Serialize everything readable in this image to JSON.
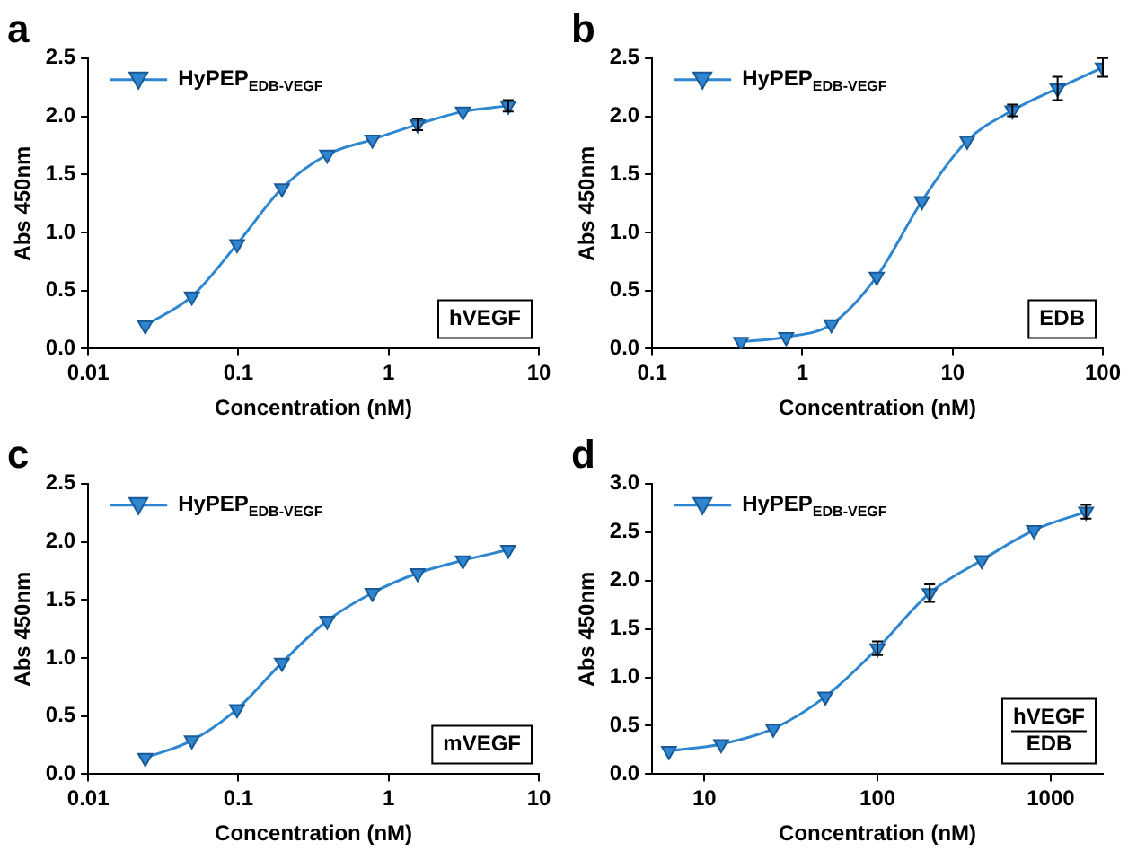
{
  "chart_data": [
    {
      "type": "line",
      "title": "a",
      "xlabel": "Concentration (nM)",
      "ylabel": "Abs 450nm",
      "log": "x",
      "xlim": [
        0.01,
        10
      ],
      "xticks": [
        0.01,
        0.1,
        1,
        10
      ],
      "ylim": [
        0,
        2.5
      ],
      "yticks": [
        {
          "value": 0,
          "label": "0.0"
        },
        {
          "value": 0.5,
          "label": "0.5"
        },
        {
          "value": 1,
          "label": "1.0"
        },
        {
          "value": 1.5,
          "label": "1.5"
        },
        {
          "value": 2,
          "label": "2.0"
        },
        {
          "value": 2.5,
          "label": "2.5"
        }
      ],
      "grid": false,
      "legend": "top left",
      "marker": "triangle",
      "line_style": "solid",
      "annotations": [
        "hVEGF"
      ],
      "x": [
        0.024,
        0.049,
        0.098,
        0.195,
        0.39,
        0.78,
        1.56,
        3.125,
        6.25
      ],
      "series": [
        {
          "name": "HyPEP$_{EDB-VEGF}$",
          "color": "#2f86d0",
          "values": [
            0.2,
            0.45,
            0.9,
            1.38,
            1.67,
            1.8,
            1.93,
            2.04,
            2.09
          ],
          "errors": [
            null,
            null,
            null,
            null,
            null,
            null,
            0.05,
            null,
            0.05
          ]
        }
      ]
    },
    {
      "type": "line",
      "title": "b",
      "xlabel": "Concentration (nM)",
      "ylabel": "Abs 450nm",
      "log": "x",
      "xlim": [
        0.1,
        100
      ],
      "xticks": [
        0.1,
        1,
        10,
        100
      ],
      "ylim": [
        0,
        2.5
      ],
      "yticks": [
        {
          "value": 0,
          "label": "0.0"
        },
        {
          "value": 0.5,
          "label": "0.5"
        },
        {
          "value": 1,
          "label": "1.0"
        },
        {
          "value": 1.5,
          "label": "1.5"
        },
        {
          "value": 2,
          "label": "2.0"
        },
        {
          "value": 2.5,
          "label": "2.5"
        }
      ],
      "grid": false,
      "legend": "top left",
      "marker": "triangle",
      "line_style": "solid",
      "annotations": [
        "EDB"
      ],
      "x": [
        0.39,
        0.78,
        1.56,
        3.125,
        6.25,
        12.5,
        25,
        50,
        100
      ],
      "series": [
        {
          "name": "HyPEP$_{EDB-VEGF}$",
          "color": "#2f86d0",
          "values": [
            0.06,
            0.1,
            0.21,
            0.62,
            1.27,
            1.79,
            2.05,
            2.24,
            2.42
          ],
          "errors": [
            null,
            null,
            null,
            null,
            null,
            null,
            0.05,
            0.1,
            0.08
          ]
        }
      ]
    },
    {
      "type": "line",
      "title": "c",
      "xlabel": "Concentration (nM)",
      "ylabel": "Abs 450nm",
      "log": "x",
      "xlim": [
        0.01,
        10
      ],
      "xticks": [
        0.01,
        0.1,
        1,
        10
      ],
      "ylim": [
        0,
        2.5
      ],
      "yticks": [
        {
          "value": 0,
          "label": "0.0"
        },
        {
          "value": 0.5,
          "label": "0.5"
        },
        {
          "value": 1,
          "label": "1.0"
        },
        {
          "value": 1.5,
          "label": "1.5"
        },
        {
          "value": 2,
          "label": "2.0"
        },
        {
          "value": 2.5,
          "label": "2.5"
        }
      ],
      "grid": false,
      "legend": "top left",
      "marker": "triangle",
      "line_style": "solid",
      "annotations": [
        "mVEGF"
      ],
      "x": [
        0.024,
        0.049,
        0.098,
        0.195,
        0.39,
        0.78,
        1.56,
        3.125,
        6.25
      ],
      "series": [
        {
          "name": "HyPEP$_{EDB-VEGF}$",
          "color": "#2f86d0",
          "values": [
            0.14,
            0.29,
            0.56,
            0.96,
            1.32,
            1.56,
            1.73,
            1.84,
            1.93
          ]
        }
      ]
    },
    {
      "type": "line",
      "title": "d",
      "xlabel": "Concentration (nM)",
      "ylabel": "Abs 450nm",
      "log": "x",
      "xlim": [
        5,
        2000
      ],
      "xticks": [
        10,
        100,
        1000
      ],
      "ylim": [
        0,
        3
      ],
      "yticks": [
        {
          "value": 0,
          "label": "0.0"
        },
        {
          "value": 0.5,
          "label": "0.5"
        },
        {
          "value": 1,
          "label": "1.0"
        },
        {
          "value": 1.5,
          "label": "1.5"
        },
        {
          "value": 2,
          "label": "2.0"
        },
        {
          "value": 2.5,
          "label": "2.5"
        },
        {
          "value": 3,
          "label": "3.0"
        }
      ],
      "grid": false,
      "legend": "top left",
      "marker": "triangle",
      "line_style": "solid",
      "annotations": [
        "hVEGF\nEDB"
      ],
      "x": [
        6.25,
        12.5,
        25,
        50,
        100,
        200,
        400,
        800,
        1600
      ],
      "series": [
        {
          "name": "HyPEP$_{EDB-VEGF}$",
          "color": "#2f86d0",
          "values": [
            0.24,
            0.31,
            0.47,
            0.8,
            1.3,
            1.87,
            2.21,
            2.52,
            2.71
          ],
          "errors": [
            null,
            null,
            null,
            null,
            0.07,
            0.09,
            null,
            null,
            0.07
          ]
        }
      ]
    }
  ]
}
